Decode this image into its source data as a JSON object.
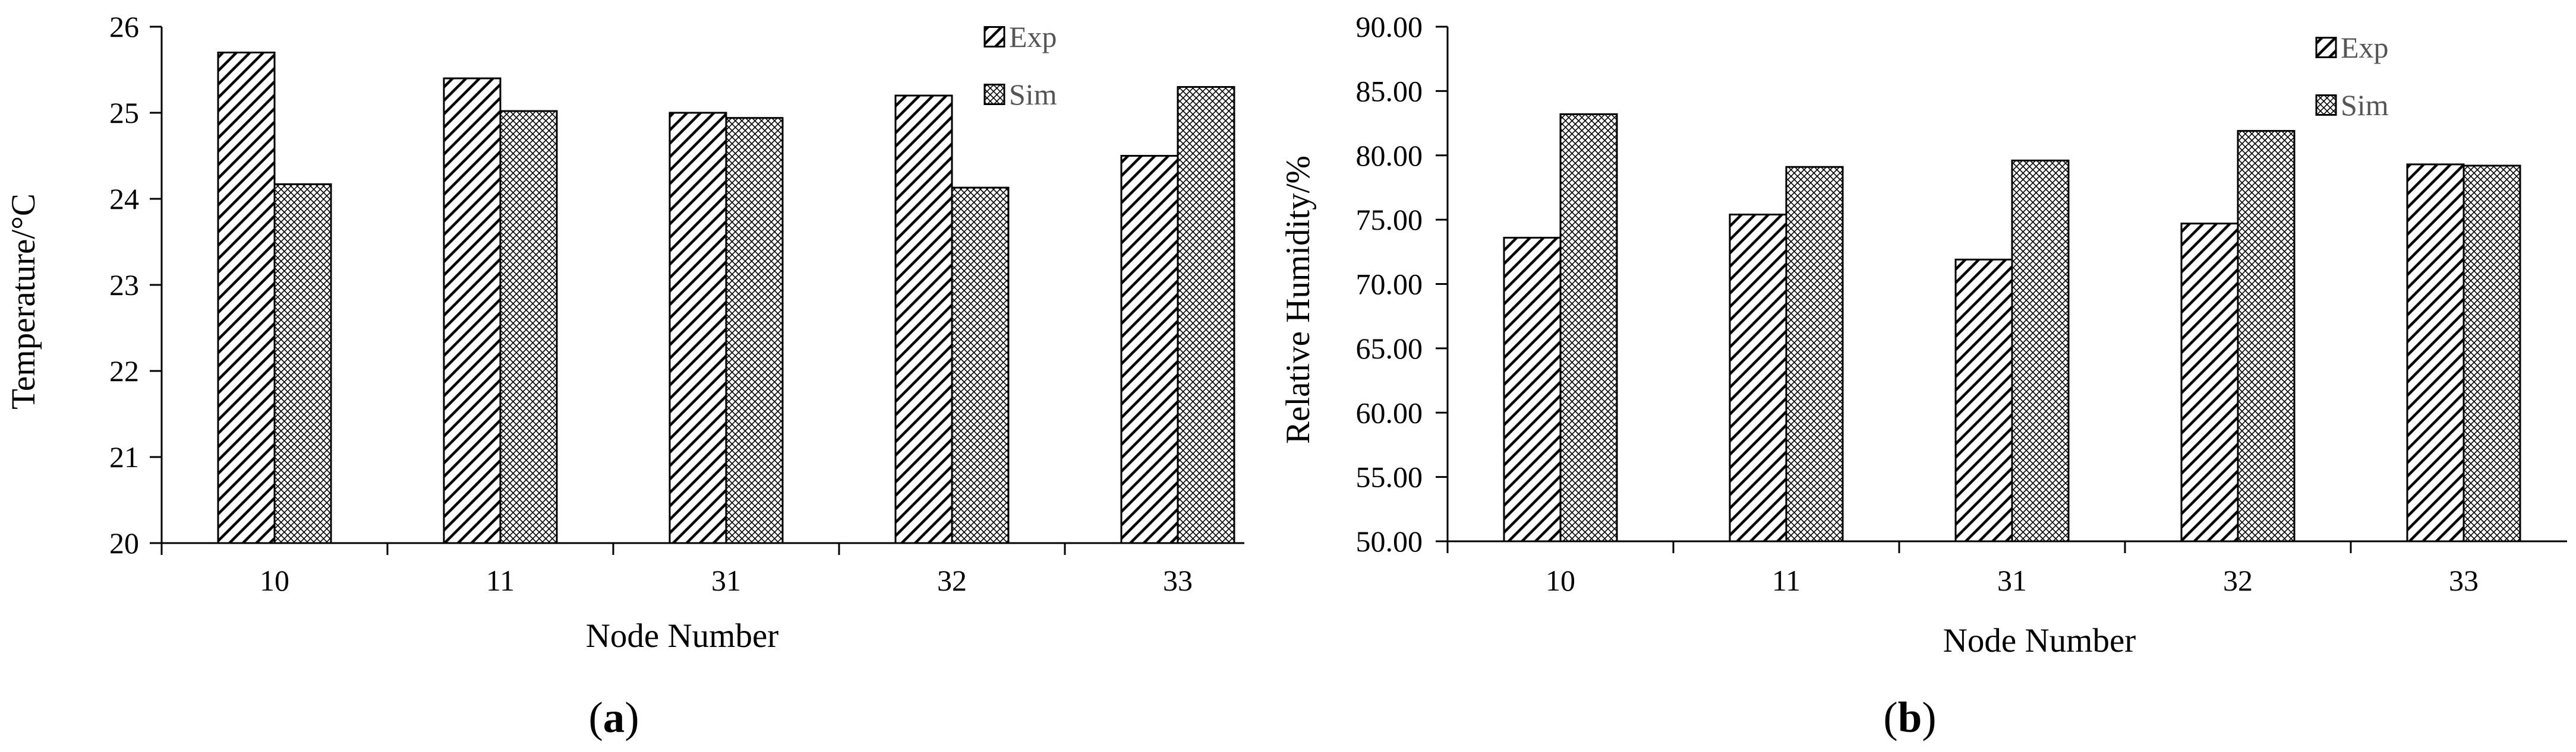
{
  "chart_data": [
    {
      "type": "bar",
      "panel_label": "a",
      "categories": [
        "10",
        "11",
        "31",
        "32",
        "33"
      ],
      "series": [
        {
          "name": "Exp",
          "values": [
            25.7,
            25.4,
            25.0,
            25.2,
            24.5
          ]
        },
        {
          "name": "Sim",
          "values": [
            24.17,
            25.02,
            24.94,
            24.13,
            25.3
          ]
        }
      ],
      "title": "",
      "xlabel": "Node Number",
      "ylabel": "Temperature/°C",
      "ylim": [
        20,
        26
      ],
      "yticks": [
        "20",
        "21",
        "22",
        "23",
        "24",
        "25",
        "26"
      ],
      "grid": false,
      "legend_position": "top-right"
    },
    {
      "type": "bar",
      "panel_label": "b",
      "categories": [
        "10",
        "11",
        "31",
        "32",
        "33"
      ],
      "series": [
        {
          "name": "Exp",
          "values": [
            73.6,
            75.4,
            71.9,
            74.7,
            79.3
          ]
        },
        {
          "name": "Sim",
          "values": [
            83.2,
            79.1,
            79.6,
            81.9,
            79.2
          ]
        }
      ],
      "title": "",
      "xlabel": "Node Number",
      "ylabel": "Relative Humidity/%",
      "ylim": [
        50,
        90
      ],
      "yticks": [
        "50.00",
        "55.00",
        "60.00",
        "65.00",
        "70.00",
        "75.00",
        "80.00",
        "85.00",
        "90.00"
      ],
      "grid": false,
      "legend_position": "top-right"
    }
  ]
}
